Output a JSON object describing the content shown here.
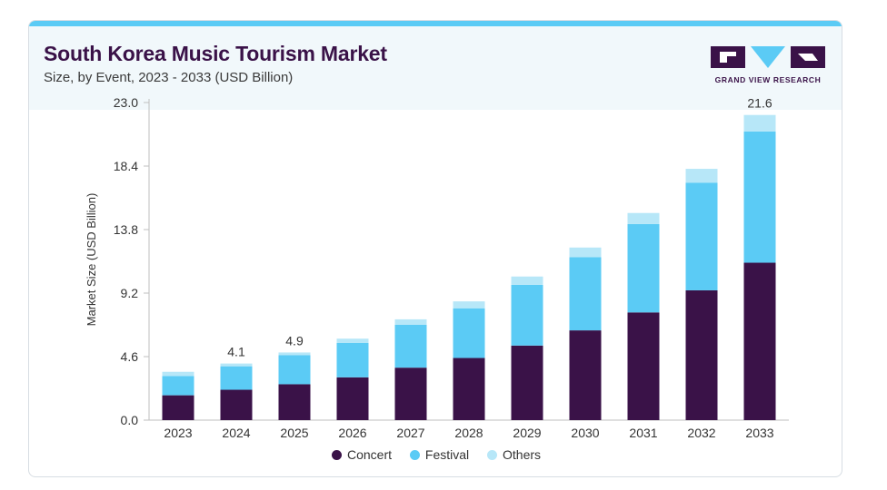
{
  "header": {
    "title": "South Korea Music Tourism Market",
    "subtitle": "Size, by Event, 2023 - 2033 (USD Billion)",
    "logo_text": "GRAND VIEW RESEARCH"
  },
  "colors": {
    "accent_bar": "#5bcbf5",
    "concert": "#3a1248",
    "festival": "#5bcbf5",
    "others": "#b7e7f8",
    "header_bg": "#f1f8fb"
  },
  "chart_data": {
    "type": "bar",
    "stacked": true,
    "categories": [
      "2023",
      "2024",
      "2025",
      "2026",
      "2027",
      "2028",
      "2029",
      "2030",
      "2031",
      "2032",
      "2033"
    ],
    "series": [
      {
        "name": "Concert",
        "values": [
          1.8,
          2.2,
          2.6,
          3.1,
          3.8,
          4.5,
          5.4,
          6.5,
          7.8,
          9.4,
          11.4
        ]
      },
      {
        "name": "Festival",
        "values": [
          1.4,
          1.7,
          2.1,
          2.5,
          3.1,
          3.6,
          4.4,
          5.3,
          6.4,
          7.8,
          9.5
        ]
      },
      {
        "name": "Others",
        "values": [
          0.3,
          0.2,
          0.2,
          0.3,
          0.4,
          0.5,
          0.6,
          0.7,
          0.8,
          1.0,
          1.2
        ]
      }
    ],
    "data_labels": {
      "2024": "4.1",
      "2025": "4.9",
      "2033": "21.6"
    },
    "ylabel": "Market Size (USD Billion)",
    "xlabel": "",
    "yticks": [
      "0.0",
      "4.6",
      "9.2",
      "13.8",
      "18.4",
      "23.0"
    ],
    "ylim": [
      0,
      23.0
    ],
    "legend_position": "bottom",
    "grid": false
  }
}
